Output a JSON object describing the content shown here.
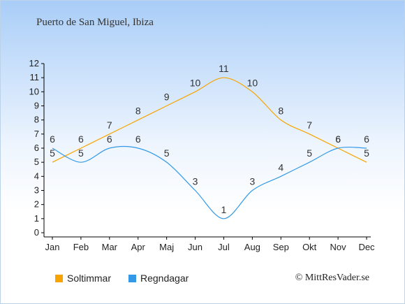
{
  "title": "Puerto de San Miguel, Ibiza",
  "credit": "© MittResVader.se",
  "chart_data": {
    "type": "line",
    "categories": [
      "Jan",
      "Feb",
      "Mar",
      "Apr",
      "Maj",
      "Jun",
      "Jul",
      "Aug",
      "Sep",
      "Okt",
      "Nov",
      "Dec"
    ],
    "ylim": [
      0,
      12
    ],
    "yticks": [
      0,
      1,
      2,
      3,
      4,
      5,
      6,
      7,
      8,
      9,
      10,
      11,
      12
    ],
    "grid": false,
    "legend_position": "bottom-left",
    "series": [
      {
        "name": "Soltimmar",
        "color": "#f7a400",
        "values": [
          5,
          6,
          7,
          8,
          9,
          10,
          11,
          10,
          8,
          7,
          6,
          5
        ]
      },
      {
        "name": "Regndagar",
        "color": "#3399e6",
        "values": [
          6,
          5,
          6,
          6,
          5,
          3,
          1,
          3,
          4,
          5,
          6,
          6
        ]
      }
    ]
  },
  "legend": {
    "items": [
      {
        "label": "Soltimmar",
        "color": "#f7a400"
      },
      {
        "label": "Regndagar",
        "color": "#3399e6"
      }
    ]
  }
}
